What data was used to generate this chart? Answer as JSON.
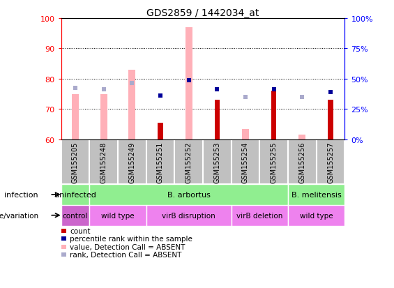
{
  "title": "GDS2859 / 1442034_at",
  "samples": [
    "GSM155205",
    "GSM155248",
    "GSM155249",
    "GSM155251",
    "GSM155252",
    "GSM155253",
    "GSM155254",
    "GSM155255",
    "GSM155256",
    "GSM155257"
  ],
  "pink_bar_top": [
    75,
    75,
    83,
    60,
    97,
    60,
    63.5,
    60,
    61.5,
    60
  ],
  "pink_bar_absent": [
    true,
    true,
    true,
    false,
    true,
    false,
    true,
    false,
    true,
    false
  ],
  "light_blue_rank": [
    77,
    76.5,
    78.5,
    0,
    79.5,
    0,
    74,
    0,
    74,
    0
  ],
  "red_bar_top": [
    0,
    0,
    0,
    65.5,
    0,
    73,
    0,
    76,
    0,
    73
  ],
  "dark_blue_rank": [
    0,
    0,
    0,
    74.5,
    79.5,
    76.5,
    0,
    76.5,
    0,
    75.5
  ],
  "red_bars": [
    false,
    false,
    false,
    true,
    false,
    true,
    false,
    true,
    false,
    true
  ],
  "dark_blue_present": [
    false,
    false,
    false,
    true,
    true,
    true,
    false,
    true,
    false,
    true
  ],
  "light_blue_absent": [
    true,
    true,
    true,
    false,
    true,
    false,
    true,
    false,
    true,
    false
  ],
  "ylim": [
    60,
    100
  ],
  "yticks": [
    60,
    70,
    80,
    90,
    100
  ],
  "y2ticks": [
    0,
    25,
    50,
    75,
    100
  ],
  "y2labels": [
    "0%",
    "25%",
    "50%",
    "75%",
    "100%"
  ],
  "infection_groups": [
    {
      "label": "uninfected",
      "start": 0,
      "end": 1,
      "color": "#90EE90"
    },
    {
      "label": "B. arbortus",
      "start": 1,
      "end": 8,
      "color": "#90EE90"
    },
    {
      "label": "B. melitensis",
      "start": 8,
      "end": 10,
      "color": "#90EE90"
    }
  ],
  "genotype_groups": [
    {
      "label": "control",
      "start": 0,
      "end": 1,
      "color": "#CC66CC"
    },
    {
      "label": "wild type",
      "start": 1,
      "end": 3,
      "color": "#EE82EE"
    },
    {
      "label": "virB disruption",
      "start": 3,
      "end": 6,
      "color": "#EE82EE"
    },
    {
      "label": "virB deletion",
      "start": 6,
      "end": 8,
      "color": "#EE82EE"
    },
    {
      "label": "wild type",
      "start": 8,
      "end": 10,
      "color": "#EE82EE"
    }
  ],
  "color_red": "#CC0000",
  "color_pink": "#FFB0B8",
  "color_dark_blue": "#000099",
  "color_light_blue": "#AAAACC",
  "color_green": "#90EE90",
  "color_gray": "#C0C0C0"
}
